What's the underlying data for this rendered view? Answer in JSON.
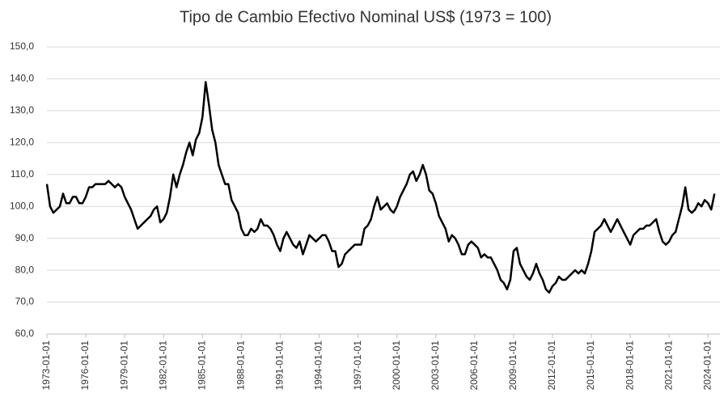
{
  "chart_data": {
    "type": "line",
    "title": "Tipo de Cambio Efectivo Nominal US$ (1973 = 100)",
    "color": "#000000",
    "grid": true,
    "xlim": [
      "1973-01-01",
      "2024-12-01"
    ],
    "xticks": [
      "1973-01-01",
      "1976-01-01",
      "1979-01-01",
      "1982-01-01",
      "1985-01-01",
      "1988-01-01",
      "1991-01-01",
      "1994-01-01",
      "1997-01-01",
      "2000-01-01",
      "2003-01-01",
      "2006-01-01",
      "2009-01-01",
      "2012-01-01",
      "2015-01-01",
      "2018-01-01",
      "2021-01-01",
      "2024-01-01"
    ],
    "ylim": [
      60,
      150
    ],
    "yticks": [
      {
        "value": 60,
        "label": "60,0"
      },
      {
        "value": 70,
        "label": "70,0"
      },
      {
        "value": 80,
        "label": "80,0"
      },
      {
        "value": 90,
        "label": "90,0"
      },
      {
        "value": 100,
        "label": "100,0"
      },
      {
        "value": 110,
        "label": "110,0"
      },
      {
        "value": 120,
        "label": "120,0"
      },
      {
        "value": 130,
        "label": "130,0"
      },
      {
        "value": 140,
        "label": "140,0"
      },
      {
        "value": 150,
        "label": "150,0"
      }
    ],
    "x": [
      "1973-01-01",
      "1973-04-01",
      "1973-07-01",
      "1973-10-01",
      "1974-01-01",
      "1974-04-01",
      "1974-07-01",
      "1974-10-01",
      "1975-01-01",
      "1975-04-01",
      "1975-07-01",
      "1975-10-01",
      "1976-01-01",
      "1976-04-01",
      "1976-07-01",
      "1976-10-01",
      "1977-01-01",
      "1977-04-01",
      "1977-07-01",
      "1977-10-01",
      "1978-01-01",
      "1978-04-01",
      "1978-07-01",
      "1978-10-01",
      "1979-01-01",
      "1979-04-01",
      "1979-07-01",
      "1979-10-01",
      "1980-01-01",
      "1980-04-01",
      "1980-07-01",
      "1980-10-01",
      "1981-01-01",
      "1981-04-01",
      "1981-07-01",
      "1981-10-01",
      "1982-01-01",
      "1982-04-01",
      "1982-07-01",
      "1982-10-01",
      "1983-01-01",
      "1983-04-01",
      "1983-07-01",
      "1983-10-01",
      "1984-01-01",
      "1984-04-01",
      "1984-07-01",
      "1984-10-01",
      "1985-01-01",
      "1985-04-01",
      "1985-07-01",
      "1985-10-01",
      "1986-01-01",
      "1986-04-01",
      "1986-07-01",
      "1986-10-01",
      "1987-01-01",
      "1987-04-01",
      "1987-07-01",
      "1987-10-01",
      "1988-01-01",
      "1988-04-01",
      "1988-07-01",
      "1988-10-01",
      "1989-01-01",
      "1989-04-01",
      "1989-07-01",
      "1989-10-01",
      "1990-01-01",
      "1990-04-01",
      "1990-07-01",
      "1990-10-01",
      "1991-01-01",
      "1991-04-01",
      "1991-07-01",
      "1991-10-01",
      "1992-01-01",
      "1992-04-01",
      "1992-07-01",
      "1992-10-01",
      "1993-01-01",
      "1993-04-01",
      "1993-07-01",
      "1993-10-01",
      "1994-01-01",
      "1994-04-01",
      "1994-07-01",
      "1994-10-01",
      "1995-01-01",
      "1995-04-01",
      "1995-07-01",
      "1995-10-01",
      "1996-01-01",
      "1996-04-01",
      "1996-07-01",
      "1996-10-01",
      "1997-01-01",
      "1997-04-01",
      "1997-07-01",
      "1997-10-01",
      "1998-01-01",
      "1998-04-01",
      "1998-07-01",
      "1998-10-01",
      "1999-01-01",
      "1999-04-01",
      "1999-07-01",
      "1999-10-01",
      "2000-01-01",
      "2000-04-01",
      "2000-07-01",
      "2000-10-01",
      "2001-01-01",
      "2001-04-01",
      "2001-07-01",
      "2001-10-01",
      "2002-01-01",
      "2002-04-01",
      "2002-07-01",
      "2002-10-01",
      "2003-01-01",
      "2003-04-01",
      "2003-07-01",
      "2003-10-01",
      "2004-01-01",
      "2004-04-01",
      "2004-07-01",
      "2004-10-01",
      "2005-01-01",
      "2005-04-01",
      "2005-07-01",
      "2005-10-01",
      "2006-01-01",
      "2006-04-01",
      "2006-07-01",
      "2006-10-01",
      "2007-01-01",
      "2007-04-01",
      "2007-07-01",
      "2007-10-01",
      "2008-01-01",
      "2008-04-01",
      "2008-07-01",
      "2008-10-01",
      "2009-01-01",
      "2009-04-01",
      "2009-07-01",
      "2009-10-01",
      "2010-01-01",
      "2010-04-01",
      "2010-07-01",
      "2010-10-01",
      "2011-01-01",
      "2011-04-01",
      "2011-07-01",
      "2011-10-01",
      "2012-01-01",
      "2012-04-01",
      "2012-07-01",
      "2012-10-01",
      "2013-01-01",
      "2013-04-01",
      "2013-07-01",
      "2013-10-01",
      "2014-01-01",
      "2014-04-01",
      "2014-07-01",
      "2014-10-01",
      "2015-01-01",
      "2015-04-01",
      "2015-07-01",
      "2015-10-01",
      "2016-01-01",
      "2016-04-01",
      "2016-07-01",
      "2016-10-01",
      "2017-01-01",
      "2017-04-01",
      "2017-07-01",
      "2017-10-01",
      "2018-01-01",
      "2018-04-01",
      "2018-07-01",
      "2018-10-01",
      "2019-01-01",
      "2019-04-01",
      "2019-07-01",
      "2019-10-01",
      "2020-01-01",
      "2020-04-01",
      "2020-07-01",
      "2020-10-01",
      "2021-01-01",
      "2021-04-01",
      "2021-07-01",
      "2021-10-01",
      "2022-01-01",
      "2022-04-01",
      "2022-07-01",
      "2022-10-01",
      "2023-01-01",
      "2023-04-01",
      "2023-07-01",
      "2023-10-01",
      "2024-01-01",
      "2024-04-01",
      "2024-07-01"
    ],
    "values": [
      107,
      100,
      98,
      99,
      100,
      104,
      101,
      101,
      103,
      103,
      101,
      101,
      103,
      106,
      106,
      107,
      107,
      107,
      107,
      108,
      107,
      106,
      107,
      106,
      103,
      101,
      99,
      96,
      93,
      94,
      95,
      96,
      97,
      99,
      100,
      95,
      96,
      98,
      103,
      110,
      106,
      110,
      113,
      117,
      120,
      116,
      121,
      123,
      128,
      139,
      132,
      124,
      120,
      113,
      110,
      107,
      107,
      102,
      100,
      98,
      93,
      91,
      91,
      93,
      92,
      93,
      96,
      94,
      94,
      93,
      91,
      88,
      86,
      90,
      92,
      90,
      88,
      87,
      89,
      85,
      88,
      91,
      90,
      89,
      90,
      91,
      91,
      89,
      86,
      86,
      81,
      82,
      85,
      86,
      87,
      88,
      88,
      88,
      93,
      94,
      96,
      100,
      103,
      99,
      100,
      101,
      99,
      98,
      100,
      103,
      105,
      107,
      110,
      111,
      108,
      110,
      113,
      110,
      105,
      104,
      101,
      97,
      95,
      93,
      89,
      91,
      90,
      88,
      85,
      85,
      88,
      89,
      88,
      87,
      84,
      85,
      84,
      84,
      82,
      80,
      77,
      76,
      74,
      77,
      86,
      87,
      82,
      80,
      78,
      77,
      79,
      82,
      79,
      77,
      74,
      73,
      75,
      76,
      78,
      77,
      77,
      78,
      79,
      80,
      79,
      80,
      79,
      82,
      86,
      92,
      93,
      94,
      96,
      94,
      92,
      94,
      96,
      94,
      92,
      90,
      88,
      91,
      92,
      93,
      93,
      94,
      94,
      95,
      96,
      92,
      89,
      88,
      89,
      91,
      92,
      96,
      100,
      106,
      99,
      98,
      99,
      101,
      100,
      102,
      101,
      99,
      104
    ]
  }
}
